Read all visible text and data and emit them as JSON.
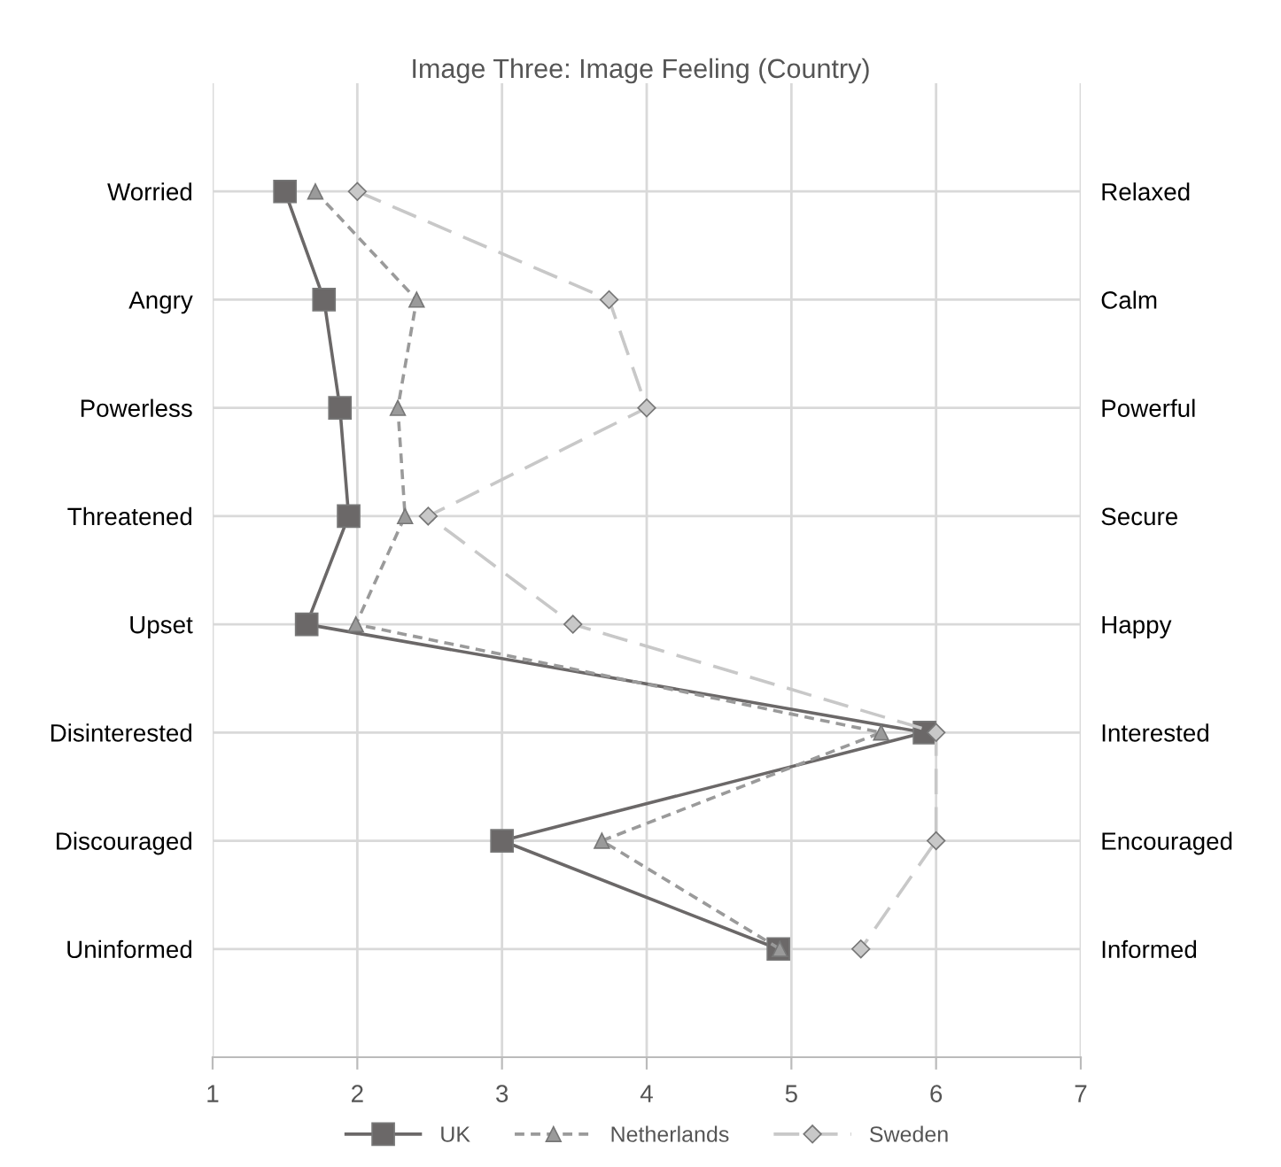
{
  "chart_data": {
    "type": "line",
    "title": "Image Three: Image Feeling (Country)",
    "orientation": "horizontal",
    "categories": [
      "Worried",
      "Angry",
      "Powerless",
      "Threatened",
      "Upset",
      "Disinterested",
      "Discouraged",
      "Uninformed"
    ],
    "y2_categories": [
      "Relaxed",
      "Calm",
      "Powerful",
      "Secure",
      "Happy",
      "Interested",
      "Encouraged",
      "Informed"
    ],
    "series": [
      {
        "name": "UK",
        "color": "#6b6868",
        "marker": "square",
        "line_style": "solid",
        "values": [
          1.5,
          1.77,
          1.88,
          1.94,
          1.65,
          5.92,
          3.0,
          4.91
        ]
      },
      {
        "name": "Netherlands",
        "color": "#9a9a9a",
        "marker": "triangle",
        "line_style": "dotted",
        "values": [
          1.71,
          2.41,
          2.28,
          2.33,
          1.99,
          5.62,
          3.69,
          4.92
        ]
      },
      {
        "name": "Sweden",
        "color": "#c8c8c8",
        "marker": "diamond",
        "line_style": "dashed",
        "values": [
          2.0,
          3.74,
          4.0,
          2.49,
          3.49,
          6.0,
          6.0,
          5.48
        ]
      }
    ],
    "xlim": [
      1,
      7
    ],
    "xticks": [
      1,
      2,
      3,
      4,
      5,
      6,
      7
    ],
    "grid": true,
    "legend": "bottom"
  }
}
